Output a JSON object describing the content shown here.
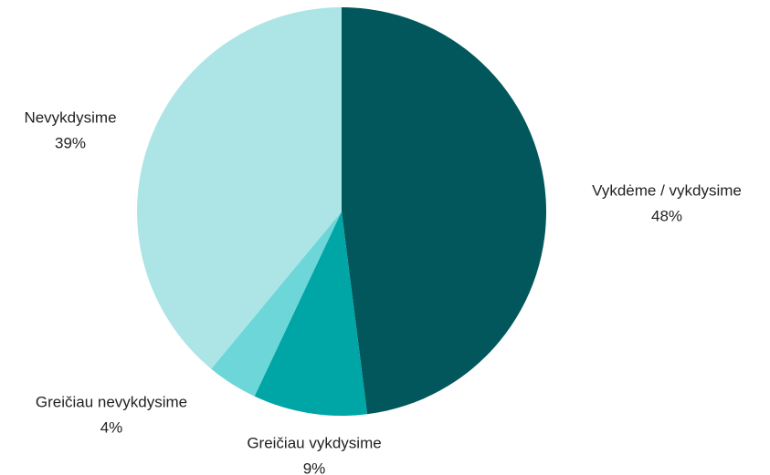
{
  "chart_data": {
    "type": "pie",
    "categories": [
      "Vykdėme / vykdysime",
      "Greičiau vykdysime",
      "Greičiau nevykdysime",
      "Nevykdysime"
    ],
    "values": [
      48,
      9,
      4,
      39
    ],
    "value_labels": [
      "48%",
      "9%",
      "4%",
      "39%"
    ],
    "colors": [
      "#02575c",
      "#00a6a6",
      "#6dd6d8",
      "#ade5e6"
    ]
  }
}
